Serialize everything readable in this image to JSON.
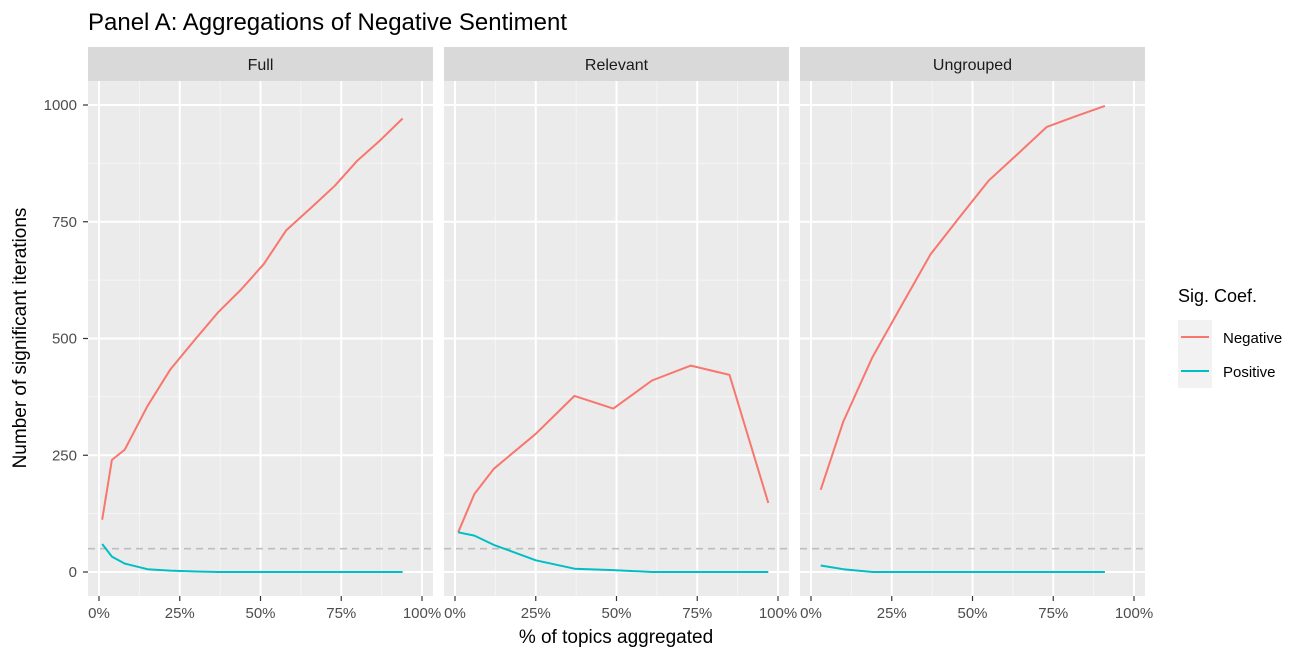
{
  "chart_data": {
    "type": "line",
    "title": "Panel A: Aggregations of Negative Sentiment",
    "xlabel": "% of topics aggregated",
    "ylabel": "Number of significant iterations",
    "xlim": [
      0,
      100
    ],
    "ylim": [
      -50,
      1100
    ],
    "x_ticks": [
      0,
      25,
      50,
      75,
      100
    ],
    "x_tick_labels": [
      "0%",
      "25%",
      "50%",
      "75%",
      "100%"
    ],
    "y_ticks": [
      0,
      250,
      500,
      750,
      1000
    ],
    "y_tick_labels": [
      "0",
      "250",
      "500",
      "750",
      "1000"
    ],
    "reference_line": {
      "y": 50,
      "style": "dashed",
      "color": "#bdbdbd"
    },
    "grid": true,
    "legend": {
      "title": "Sig. Coef.",
      "position": "right",
      "entries": [
        {
          "name": "Negative",
          "color": "#F8766D"
        },
        {
          "name": "Positive",
          "color": "#00BFC4"
        }
      ]
    },
    "facets": [
      {
        "label": "Full",
        "series": [
          {
            "name": "Negative",
            "color": "#F8766D",
            "x": [
              1,
              4,
              8,
              15,
              22,
              30,
              37,
              44,
              51,
              58,
              66,
              73,
              80,
              87,
              94
            ],
            "y": [
              112,
              240,
              262,
              355,
              433,
              500,
              557,
              605,
              659,
              732,
              782,
              827,
              881,
              924,
              971
            ]
          },
          {
            "name": "Positive",
            "color": "#00BFC4",
            "x": [
              1,
              4,
              8,
              15,
              22,
              30,
              37,
              44,
              51,
              58,
              66,
              73,
              80,
              87,
              94
            ],
            "y": [
              60,
              33,
              18,
              6,
              3,
              1,
              0,
              0,
              0,
              0,
              0,
              0,
              0,
              0,
              0
            ]
          }
        ]
      },
      {
        "label": "Relevant",
        "series": [
          {
            "name": "Negative",
            "color": "#F8766D",
            "x": [
              1,
              6,
              12,
              25,
              37,
              49,
              61,
              73,
              85,
              97
            ],
            "y": [
              85,
              167,
              221,
              296,
              377,
              350,
              410,
              442,
              422,
              148
            ]
          },
          {
            "name": "Positive",
            "color": "#00BFC4",
            "x": [
              1,
              6,
              12,
              25,
              37,
              49,
              61,
              73,
              85,
              97
            ],
            "y": [
              85,
              78,
              58,
              25,
              7,
              4,
              0,
              0,
              0,
              0
            ]
          }
        ]
      },
      {
        "label": "Ungrouped",
        "series": [
          {
            "name": "Negative",
            "color": "#F8766D",
            "x": [
              3,
              10,
              19,
              28,
              37,
              46,
              55,
              64,
              73,
              82,
              91
            ],
            "y": [
              176,
              322,
              460,
              570,
              680,
              760,
              838,
              895,
              953,
              976,
              998
            ]
          },
          {
            "name": "Positive",
            "color": "#00BFC4",
            "x": [
              3,
              10,
              19,
              28,
              37,
              46,
              55,
              64,
              73,
              82,
              91
            ],
            "y": [
              14,
              6,
              0,
              0,
              0,
              0,
              0,
              0,
              0,
              0,
              0
            ]
          }
        ]
      }
    ]
  }
}
